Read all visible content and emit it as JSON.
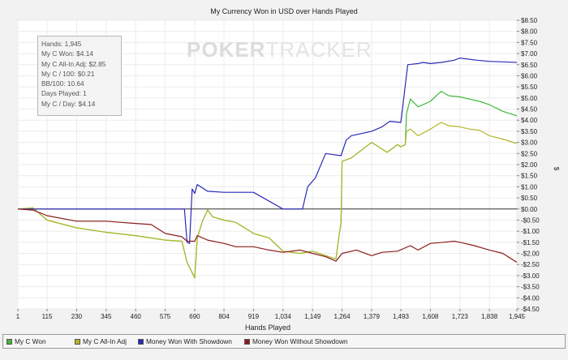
{
  "chart_data": {
    "type": "line",
    "title": "My Currency Won in USD over Hands Played",
    "xlabel": "Hands Played",
    "ylabel": "$",
    "xlim": [
      1,
      1945
    ],
    "ylim": [
      -4.5,
      8.5
    ],
    "x_ticks": [
      1,
      115,
      230,
      345,
      460,
      575,
      690,
      804,
      919,
      1034,
      1149,
      1264,
      1379,
      1493,
      1608,
      1723,
      1838,
      1945
    ],
    "x_tick_labels": [
      "1",
      "115",
      "230",
      "345",
      "460",
      "575",
      "690",
      "804",
      "919",
      "1,034",
      "1,149",
      "1,264",
      "1,379",
      "1,493",
      "1,608",
      "1,723",
      "1,838",
      "1,945"
    ],
    "y_ticks": [
      8.5,
      8,
      7.5,
      7,
      6.5,
      6,
      5.5,
      5,
      4.5,
      4,
      3.5,
      3,
      2.5,
      2,
      1.5,
      1,
      0.5,
      0,
      -0.5,
      -1,
      -1.5,
      -2,
      -2.5,
      -3,
      -3.5,
      -4,
      -4.5
    ],
    "y_tick_labels": [
      "$8.50",
      "$8.00",
      "$7.50",
      "$7.00",
      "$6.50",
      "$6.00",
      "$5.50",
      "$5.00",
      "$4.50",
      "$4.00",
      "$3.50",
      "$3.00",
      "$2.50",
      "$2.00",
      "$1.50",
      "$1.00",
      "$0.50",
      "$0.00",
      "-$0.50",
      "-$1.00",
      "-$1.50",
      "-$2.00",
      "-$2.50",
      "-$3.00",
      "-$3.50",
      "-$4.00",
      "-$4.50"
    ],
    "legend_position": "bottom",
    "grid": true,
    "series": [
      {
        "name": "My C Won",
        "color": "#3cb83c",
        "points": [
          [
            1,
            0.0
          ],
          [
            60,
            0.05
          ],
          [
            115,
            -0.5
          ],
          [
            230,
            -0.85
          ],
          [
            345,
            -1.05
          ],
          [
            460,
            -1.2
          ],
          [
            575,
            -1.4
          ],
          [
            640,
            -1.45
          ],
          [
            660,
            -2.4
          ],
          [
            690,
            -3.1
          ],
          [
            700,
            -1.3
          ],
          [
            720,
            -0.55
          ],
          [
            740,
            -0.05
          ],
          [
            760,
            -0.35
          ],
          [
            804,
            -0.5
          ],
          [
            850,
            -0.6
          ],
          [
            919,
            -1.1
          ],
          [
            980,
            -1.3
          ],
          [
            1034,
            -1.9
          ],
          [
            1100,
            -2.0
          ],
          [
            1149,
            -1.9
          ],
          [
            1200,
            -2.1
          ],
          [
            1240,
            -2.25
          ],
          [
            1250,
            -1.4
          ],
          [
            1260,
            -0.6
          ],
          [
            1264,
            2.15
          ],
          [
            1300,
            2.3
          ],
          [
            1379,
            3.0
          ],
          [
            1440,
            2.55
          ],
          [
            1480,
            2.9
          ],
          [
            1493,
            2.8
          ],
          [
            1510,
            2.9
          ],
          [
            1515,
            4.3
          ],
          [
            1530,
            4.95
          ],
          [
            1560,
            4.6
          ],
          [
            1608,
            4.85
          ],
          [
            1650,
            5.3
          ],
          [
            1680,
            5.1
          ],
          [
            1723,
            5.05
          ],
          [
            1760,
            4.95
          ],
          [
            1800,
            4.85
          ],
          [
            1838,
            4.7
          ],
          [
            1890,
            4.4
          ],
          [
            1945,
            4.2
          ]
        ]
      },
      {
        "name": "My C All-In Adj",
        "color": "#b5b528",
        "points": [
          [
            1,
            0.0
          ],
          [
            60,
            0.05
          ],
          [
            115,
            -0.5
          ],
          [
            230,
            -0.85
          ],
          [
            345,
            -1.05
          ],
          [
            460,
            -1.2
          ],
          [
            575,
            -1.4
          ],
          [
            640,
            -1.45
          ],
          [
            660,
            -2.4
          ],
          [
            690,
            -3.1
          ],
          [
            700,
            -1.3
          ],
          [
            720,
            -0.55
          ],
          [
            740,
            -0.05
          ],
          [
            760,
            -0.35
          ],
          [
            804,
            -0.5
          ],
          [
            850,
            -0.6
          ],
          [
            919,
            -1.1
          ],
          [
            980,
            -1.3
          ],
          [
            1034,
            -1.9
          ],
          [
            1100,
            -2.0
          ],
          [
            1149,
            -1.9
          ],
          [
            1200,
            -2.1
          ],
          [
            1240,
            -2.25
          ],
          [
            1250,
            -1.4
          ],
          [
            1260,
            -0.6
          ],
          [
            1264,
            2.15
          ],
          [
            1300,
            2.3
          ],
          [
            1379,
            3.0
          ],
          [
            1440,
            2.55
          ],
          [
            1480,
            2.9
          ],
          [
            1493,
            2.8
          ],
          [
            1510,
            2.9
          ],
          [
            1515,
            3.5
          ],
          [
            1530,
            3.6
          ],
          [
            1560,
            3.3
          ],
          [
            1608,
            3.6
          ],
          [
            1650,
            3.9
          ],
          [
            1680,
            3.75
          ],
          [
            1723,
            3.7
          ],
          [
            1760,
            3.6
          ],
          [
            1800,
            3.55
          ],
          [
            1838,
            3.3
          ],
          [
            1890,
            3.15
          ],
          [
            1945,
            2.95
          ]
        ]
      },
      {
        "name": "Money Won With Showdown",
        "color": "#2929b8",
        "points": [
          [
            1,
            0.0
          ],
          [
            115,
            0.0
          ],
          [
            400,
            0.0
          ],
          [
            520,
            0.0
          ],
          [
            650,
            0.0
          ],
          [
            660,
            -1.5
          ],
          [
            670,
            -1.55
          ],
          [
            680,
            0.9
          ],
          [
            690,
            0.7
          ],
          [
            700,
            1.1
          ],
          [
            740,
            0.8
          ],
          [
            804,
            0.75
          ],
          [
            919,
            0.75
          ],
          [
            1034,
            0.0
          ],
          [
            1110,
            0.0
          ],
          [
            1130,
            1.0
          ],
          [
            1160,
            1.4
          ],
          [
            1200,
            2.5
          ],
          [
            1230,
            2.45
          ],
          [
            1260,
            2.4
          ],
          [
            1280,
            3.1
          ],
          [
            1300,
            3.3
          ],
          [
            1379,
            3.5
          ],
          [
            1420,
            3.7
          ],
          [
            1450,
            3.95
          ],
          [
            1493,
            3.9
          ],
          [
            1520,
            6.5
          ],
          [
            1560,
            6.55
          ],
          [
            1580,
            6.6
          ],
          [
            1608,
            6.55
          ],
          [
            1650,
            6.6
          ],
          [
            1700,
            6.7
          ],
          [
            1723,
            6.8
          ],
          [
            1790,
            6.7
          ],
          [
            1838,
            6.65
          ],
          [
            1945,
            6.6
          ]
        ]
      },
      {
        "name": "Money Won Without Showdown",
        "color": "#8b1c1c",
        "points": [
          [
            1,
            0.0
          ],
          [
            60,
            -0.05
          ],
          [
            115,
            -0.3
          ],
          [
            230,
            -0.55
          ],
          [
            345,
            -0.55
          ],
          [
            460,
            -0.65
          ],
          [
            520,
            -0.7
          ],
          [
            575,
            -1.1
          ],
          [
            640,
            -1.25
          ],
          [
            660,
            -1.45
          ],
          [
            690,
            -1.45
          ],
          [
            700,
            -1.2
          ],
          [
            740,
            -1.4
          ],
          [
            804,
            -1.55
          ],
          [
            850,
            -1.7
          ],
          [
            919,
            -1.7
          ],
          [
            980,
            -1.85
          ],
          [
            1034,
            -1.95
          ],
          [
            1100,
            -1.85
          ],
          [
            1149,
            -2.0
          ],
          [
            1200,
            -2.15
          ],
          [
            1240,
            -2.35
          ],
          [
            1264,
            -2.0
          ],
          [
            1320,
            -1.85
          ],
          [
            1379,
            -2.1
          ],
          [
            1420,
            -1.95
          ],
          [
            1480,
            -1.9
          ],
          [
            1530,
            -1.65
          ],
          [
            1560,
            -1.85
          ],
          [
            1608,
            -1.55
          ],
          [
            1660,
            -1.5
          ],
          [
            1700,
            -1.45
          ],
          [
            1723,
            -1.5
          ],
          [
            1780,
            -1.65
          ],
          [
            1838,
            -1.85
          ],
          [
            1890,
            -2.0
          ],
          [
            1945,
            -2.4
          ]
        ]
      }
    ]
  },
  "stats": {
    "hands": "Hands: 1,945",
    "won": "My C Won: $4.14",
    "allin": "My C All-In Adj: $2.85",
    "per100": "My C / 100: $0.21",
    "bb100": "BB/100: 10.64",
    "days": "Days Played: 1",
    "perday": "My C / Day: $4.14"
  },
  "watermark": {
    "part1": "POKER",
    "part2": "TRACKER"
  }
}
